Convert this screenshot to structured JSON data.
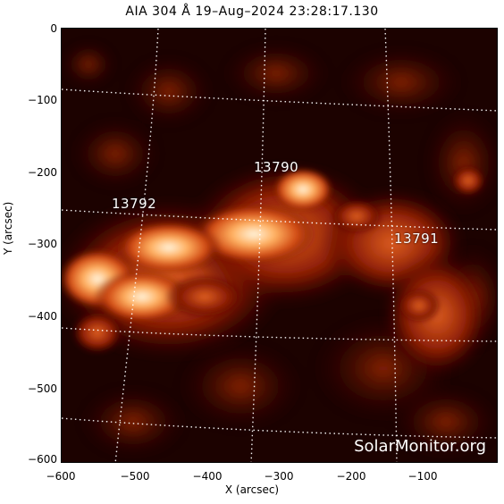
{
  "title": "AIA 304 Å 19–Aug–2024 23:28:17.130",
  "axes": {
    "xlabel": "X (arcsec)",
    "ylabel": "Y (arcsec)",
    "xticks": [
      "−600",
      "−500",
      "−400",
      "−300",
      "−200",
      "−100"
    ],
    "yticks": [
      "0",
      "−100",
      "−200",
      "−300",
      "−400",
      "−500",
      "−600"
    ]
  },
  "regions": [
    {
      "id": "r13790",
      "label": "13790"
    },
    {
      "id": "r13792",
      "label": "13792"
    },
    {
      "id": "r13791",
      "label": "13791"
    }
  ],
  "watermark": "SolarMonitor.org",
  "colors": {
    "background": "#1a0000",
    "emission_mid": "#c0300a",
    "emission_bright": "#ffe8c0",
    "grid": "#ffffff"
  }
}
